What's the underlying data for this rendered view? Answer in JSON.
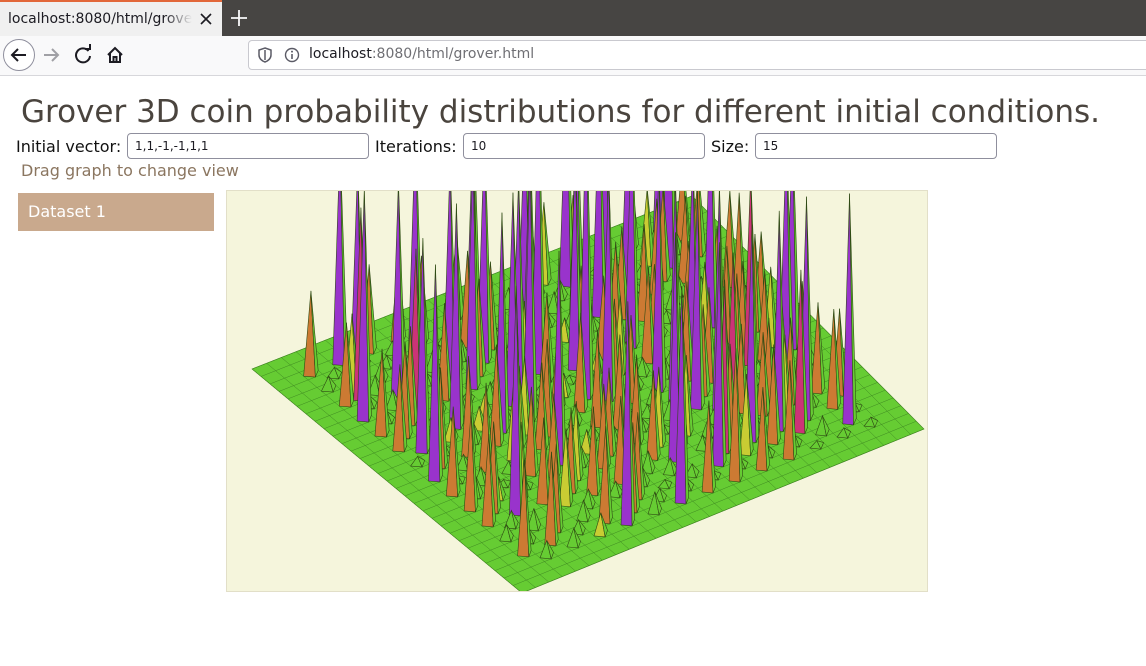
{
  "browser": {
    "tab_title": "localhost:8080/html/grover.html",
    "url_host": "localhost",
    "url_rest": ":8080/html/grover.html"
  },
  "page": {
    "title": "Grover 3D coin probability distributions for different initial conditions.",
    "hint": "Drag graph to change view",
    "dataset_label": "Dataset 1"
  },
  "controls": {
    "initial_vector_label": "Initial vector:",
    "initial_vector_value": "1,1,-1,-1,1,1",
    "iterations_label": "Iterations:",
    "iterations_value": "10",
    "size_label": "Size:",
    "size_value": "15"
  },
  "graph": {
    "type": "3d-surface",
    "grid_size": 15,
    "colors": {
      "background": "#f5f5dc",
      "base": "#66cc33",
      "low": "#c9cc33",
      "mid": "#cc7a33",
      "high": "#cc3377",
      "peak": "#9933cc"
    }
  }
}
